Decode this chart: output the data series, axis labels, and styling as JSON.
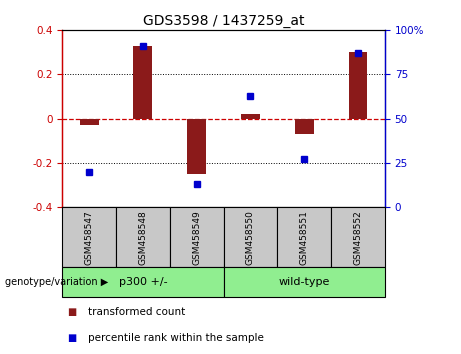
{
  "title": "GDS3598 / 1437259_at",
  "samples": [
    "GSM458547",
    "GSM458548",
    "GSM458549",
    "GSM458550",
    "GSM458551",
    "GSM458552"
  ],
  "bar_values": [
    -0.03,
    0.33,
    -0.25,
    0.02,
    -0.07,
    0.3
  ],
  "dot_values_right": [
    20,
    91,
    13,
    63,
    27,
    87
  ],
  "ylim_left": [
    -0.4,
    0.4
  ],
  "ylim_right": [
    0,
    100
  ],
  "yticks_left": [
    -0.4,
    -0.2,
    0.0,
    0.2,
    0.4
  ],
  "yticks_right": [
    0,
    25,
    50,
    75,
    100
  ],
  "bar_color": "#8B1A1A",
  "dot_color": "#0000CD",
  "zero_line_color": "#CC0000",
  "grid_color": "#000000",
  "left_axis_color": "#CC0000",
  "right_axis_color": "#0000CD",
  "sample_box_color": "#C8C8C8",
  "group_box_color": "#90EE90",
  "group_spans": [
    [
      0,
      2,
      "p300 +/-"
    ],
    [
      3,
      5,
      "wild-type"
    ]
  ],
  "group_row_label": "genotype/variation",
  "legend_items": [
    {
      "label": "transformed count",
      "color": "#8B1A1A"
    },
    {
      "label": "percentile rank within the sample",
      "color": "#0000CD"
    }
  ],
  "bar_width": 0.35,
  "title_fontsize": 10,
  "tick_fontsize": 7.5,
  "sample_fontsize": 6.5,
  "group_fontsize": 8,
  "legend_fontsize": 7.5
}
